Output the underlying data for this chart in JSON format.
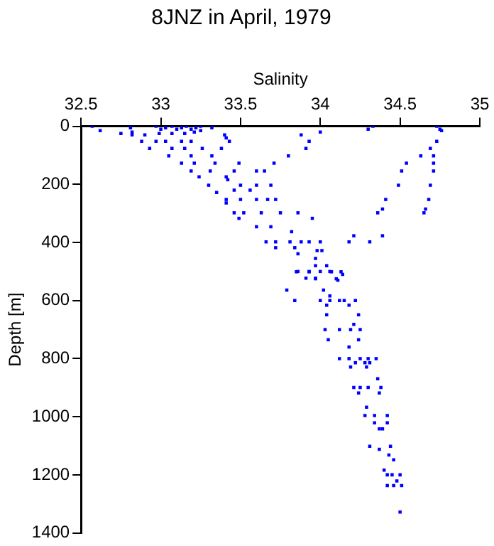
{
  "chart_data": {
    "type": "scatter",
    "title": "8JNZ in April, 1979",
    "xlabel": "Salinity",
    "ylabel": "Depth [m]",
    "xlim": [
      32.5,
      35
    ],
    "xticks": [
      32.5,
      33,
      33.5,
      34,
      34.5,
      35
    ],
    "ylim": [
      1400,
      0
    ],
    "yticks": [
      0,
      200,
      400,
      600,
      800,
      1000,
      1200,
      1400
    ],
    "grid": false,
    "legend": false,
    "marker": "square",
    "series": [
      {
        "color": "#0000ff",
        "x": [
          32.57,
          32.62,
          32.75,
          32.81,
          32.82,
          32.97,
          33.0,
          33.03,
          33.07,
          33.1,
          33.13,
          33.16,
          33.19,
          33.22,
          33.25,
          33.32,
          33.88,
          34.0,
          34.3,
          34.33,
          34.73,
          34.75,
          34.76,
          32.82,
          32.9,
          32.99,
          33.07,
          33.15,
          33.21,
          33.25,
          33.4,
          33.41,
          32.88,
          32.97,
          33.03,
          33.13,
          33.19,
          33.43,
          33.93,
          34.73,
          32.93,
          33.07,
          33.15,
          33.26,
          33.38,
          33.91,
          34.69,
          33.05,
          33.19,
          33.32,
          33.8,
          34.63,
          34.71,
          33.13,
          33.21,
          33.34,
          33.49,
          33.71,
          34.54,
          34.71,
          33.19,
          33.31,
          33.46,
          33.6,
          33.65,
          34.51,
          34.71,
          33.24,
          33.41,
          33.42,
          33.3,
          33.5,
          33.6,
          33.69,
          34.49,
          34.69,
          33.46,
          33.56,
          33.35,
          33.41,
          33.5,
          33.6,
          33.67,
          33.72,
          34.41,
          34.68,
          33.41,
          34.39,
          34.66,
          33.46,
          33.52,
          33.63,
          33.75,
          33.86,
          34.36,
          34.65,
          33.49,
          33.95,
          33.6,
          33.69,
          33.82,
          34.21,
          34.39,
          33.66,
          33.72,
          33.81,
          33.88,
          33.93,
          34.0,
          34.18,
          34.31,
          33.72,
          33.84,
          33.98,
          34.01,
          33.86,
          33.97,
          33.97,
          34.04,
          33.85,
          33.93,
          34.07,
          34.13,
          33.97,
          34.1,
          33.86,
          33.93,
          34.0,
          34.06,
          34.14,
          33.91,
          33.97,
          34.11,
          33.79,
          34.02,
          34.06,
          33.84,
          34.0,
          34.06,
          34.12,
          34.15,
          34.22,
          34.04,
          34.18,
          34.04,
          34.24,
          34.21,
          34.03,
          34.12,
          34.19,
          34.25,
          34.05,
          34.24,
          34.18,
          34.12,
          34.18,
          34.25,
          34.3,
          34.35,
          34.22,
          34.28,
          34.31,
          34.19,
          34.29,
          34.36,
          34.21,
          34.25,
          34.3,
          34.38,
          34.24,
          34.37,
          34.29,
          34.28,
          34.34,
          34.42,
          34.34,
          34.42,
          34.37,
          34.39,
          34.31,
          34.44,
          34.37,
          34.43,
          34.46,
          34.4,
          34.42,
          34.45,
          34.5,
          34.48,
          34.42,
          34.46,
          34.51,
          34.5
        ],
        "values": [
          0,
          15,
          25,
          5,
          20,
          0,
          10,
          5,
          0,
          10,
          5,
          0,
          10,
          5,
          0,
          5,
          30,
          20,
          10,
          0,
          0,
          10,
          15,
          30,
          30,
          25,
          25,
          25,
          20,
          15,
          30,
          40,
          52,
          52,
          52,
          52,
          52,
          52,
          52,
          52,
          76,
          76,
          76,
          76,
          76,
          76,
          76,
          102,
          102,
          102,
          102,
          102,
          102,
          127,
          127,
          127,
          127,
          127,
          127,
          127,
          154,
          154,
          154,
          154,
          154,
          154,
          154,
          174,
          174,
          184,
          203,
          203,
          203,
          203,
          203,
          203,
          220,
          220,
          228,
          252,
          252,
          252,
          252,
          252,
          252,
          252,
          264,
          285,
          285,
          298,
          298,
          298,
          298,
          298,
          298,
          298,
          317,
          317,
          346,
          346,
          363,
          377,
          377,
          398,
          398,
          398,
          398,
          398,
          398,
          398,
          398,
          418,
          418,
          428,
          428,
          439,
          455,
          480,
          480,
          501,
          501,
          501,
          501,
          525,
          525,
          500,
          500,
          500,
          500,
          510,
          523,
          523,
          530,
          564,
          564,
          584,
          600,
          600,
          600,
          600,
          600,
          600,
          616,
          616,
          649,
          649,
          682,
          700,
          700,
          700,
          700,
          735,
          735,
          760,
          800,
          800,
          800,
          800,
          800,
          814,
          814,
          814,
          829,
          829,
          869,
          899,
          899,
          899,
          899,
          918,
          918,
          967,
          996,
          996,
          996,
          1021,
          1021,
          1042,
          1042,
          1102,
          1102,
          1112,
          1132,
          1148,
          1184,
          1200,
          1200,
          1200,
          1221,
          1237,
          1237,
          1237,
          1328
        ]
      }
    ]
  }
}
